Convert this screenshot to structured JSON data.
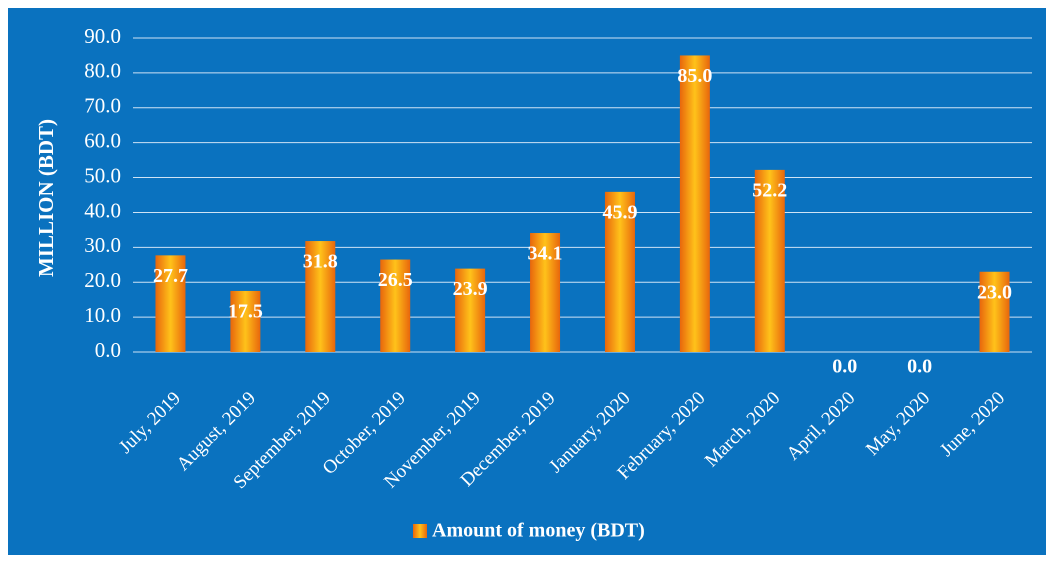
{
  "chart_data": {
    "type": "bar",
    "y_axis_label": "MILLION  (BDT)",
    "categories": [
      "July, 2019",
      "August, 2019",
      "September, 2019",
      "October, 2019",
      "November, 2019",
      "December, 2019",
      "January, 2020",
      "February, 2020",
      "March, 2020",
      "April, 2020",
      "May, 2020",
      "June, 2020"
    ],
    "series": [
      {
        "name": "Amount of money (BDT)",
        "color": "#f5890f",
        "values": [
          27.7,
          17.5,
          31.8,
          26.5,
          23.9,
          34.1,
          45.9,
          85.0,
          52.2,
          0,
          0,
          23.0
        ],
        "value_labels": [
          "27.7",
          "17.5",
          "31.8",
          "26.5",
          "23.9",
          "34.1",
          "45.9",
          "85.0",
          "52.2",
          "0.0",
          "0.0",
          "23.0"
        ]
      }
    ],
    "ylim": [
      0,
      90
    ],
    "yticks": [
      {
        "value": 0,
        "label": "0.0"
      },
      {
        "value": 10,
        "label": "10.0"
      },
      {
        "value": 20,
        "label": "20.0"
      },
      {
        "value": 30,
        "label": "30.0"
      },
      {
        "value": 40,
        "label": "40.0"
      },
      {
        "value": 50,
        "label": "50.0"
      },
      {
        "value": 60,
        "label": "60.0"
      },
      {
        "value": 70,
        "label": "70.0"
      },
      {
        "value": 80,
        "label": "80.0"
      },
      {
        "value": 90,
        "label": "90.0"
      }
    ],
    "grid": true,
    "legend": "bottom"
  }
}
